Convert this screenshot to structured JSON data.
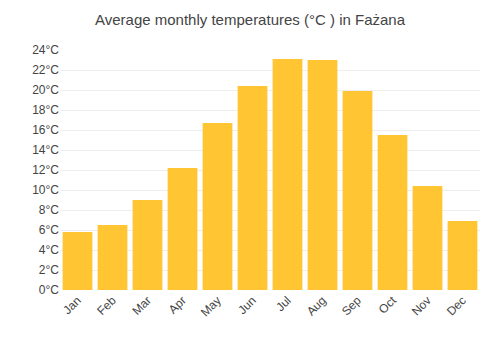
{
  "chart_data": {
    "type": "bar",
    "title": "Average monthly temperatures (°C ) in Fażana",
    "categories": [
      "Jan",
      "Feb",
      "Mar",
      "Apr",
      "May",
      "Jun",
      "Jul",
      "Aug",
      "Sep",
      "Oct",
      "Nov",
      "Dec"
    ],
    "values": [
      5.8,
      6.5,
      9.0,
      12.2,
      16.7,
      20.4,
      23.1,
      23.0,
      19.9,
      15.5,
      10.4,
      6.9
    ],
    "color": "#FFC533",
    "ylim": [
      0,
      24
    ],
    "yticks": [
      {
        "value": 0,
        "label": "0°C"
      },
      {
        "value": 2,
        "label": "2°C"
      },
      {
        "value": 4,
        "label": "4°C"
      },
      {
        "value": 6,
        "label": "6°C"
      },
      {
        "value": 8,
        "label": "8°C"
      },
      {
        "value": 10,
        "label": "10°C"
      },
      {
        "value": 12,
        "label": "12°C"
      },
      {
        "value": 14,
        "label": "14°C"
      },
      {
        "value": 16,
        "label": "16°C"
      },
      {
        "value": 18,
        "label": "18°C"
      },
      {
        "value": 20,
        "label": "20°C"
      },
      {
        "value": 22,
        "label": "22°C"
      },
      {
        "value": 24,
        "label": "24°C"
      }
    ],
    "grid": true
  }
}
